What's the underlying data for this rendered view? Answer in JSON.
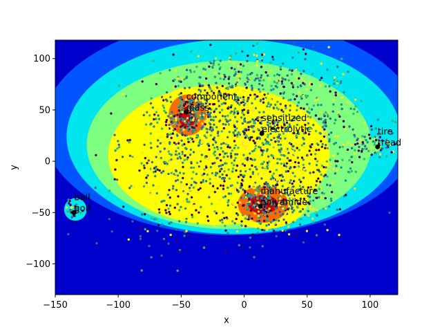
{
  "chart_data": {
    "type": "scatter",
    "title": "",
    "xlabel": "x",
    "ylabel": "y",
    "xlim": [
      -150,
      122
    ],
    "ylim": [
      -130,
      118
    ],
    "xticks": [
      -150,
      -100,
      -50,
      0,
      50,
      100
    ],
    "yticks": [
      -100,
      -50,
      0,
      50,
      100
    ],
    "grid": false,
    "legend": "none",
    "background_color": "#0000cc",
    "density_levels": [
      {
        "level": 1,
        "color": "#0055ff"
      },
      {
        "level": 2,
        "color": "#00e5ee"
      },
      {
        "level": 3,
        "color": "#7fff7f"
      },
      {
        "level": 4,
        "color": "#ffff00"
      },
      {
        "level": 5,
        "color": "#ff6a00"
      },
      {
        "level": 6,
        "color": "#d40000"
      }
    ],
    "point_colors": [
      "#440154",
      "#31688e",
      "#35b779",
      "#fde725",
      "#21918c"
    ],
    "clusters": [
      {
        "x": -45,
        "y": 45
      },
      {
        "x": 15,
        "y": -42
      },
      {
        "x": 10,
        "y": 28
      },
      {
        "x": -20,
        "y": 10
      },
      {
        "x": -60,
        "y": -20
      },
      {
        "x": 60,
        "y": 40
      },
      {
        "x": 40,
        "y": -20
      },
      {
        "x": 100,
        "y": 15
      },
      {
        "x": -135,
        "y": -47
      },
      {
        "x": 20,
        "y": 80
      },
      {
        "x": -20,
        "y": 80
      }
    ],
    "annotations": [
      {
        "x": -46,
        "y": 48,
        "labels": [
          "component",
          "glass"
        ]
      },
      {
        "x": 14,
        "y": 27,
        "labels": [
          "sensitized",
          "electrolytic"
        ]
      },
      {
        "x": 106,
        "y": 14,
        "labels": [
          "tire",
          "tread"
        ]
      },
      {
        "x": 13,
        "y": -44,
        "labels": [
          "manufacture",
          "polyamide"
        ]
      },
      {
        "x": -135,
        "y": -50,
        "labels": [
          "ball",
          "golf"
        ]
      }
    ]
  }
}
